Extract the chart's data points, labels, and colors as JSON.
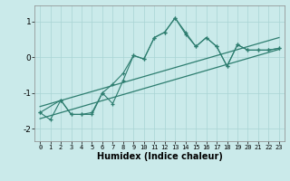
{
  "xlabel": "Humidex (Indice chaleur)",
  "bg_color": "#caeaea",
  "line_color": "#2d7d6f",
  "xlim": [
    -0.5,
    23.5
  ],
  "ylim": [
    -2.35,
    1.45
  ],
  "yticks": [
    -2,
    -1,
    0,
    1
  ],
  "xticks": [
    0,
    1,
    2,
    3,
    4,
    5,
    6,
    7,
    8,
    9,
    10,
    11,
    12,
    13,
    14,
    15,
    16,
    17,
    18,
    19,
    20,
    21,
    22,
    23
  ],
  "series1_x": [
    0,
    1,
    2,
    3,
    4,
    5,
    6,
    7,
    8,
    9,
    10,
    11,
    12,
    13,
    14,
    15,
    16,
    17,
    18,
    19,
    20,
    21,
    22,
    23
  ],
  "series1_y": [
    -1.55,
    -1.75,
    -1.2,
    -1.6,
    -1.6,
    -1.6,
    -1.0,
    -1.3,
    -0.65,
    0.05,
    -0.05,
    0.55,
    0.7,
    1.1,
    0.7,
    0.3,
    0.55,
    0.3,
    -0.25,
    0.35,
    0.2,
    0.2,
    0.2,
    0.25
  ],
  "series2_x": [
    0,
    2,
    3,
    4,
    5,
    6,
    7,
    8,
    9,
    10,
    11,
    12,
    13,
    14,
    15,
    16,
    17,
    18,
    19,
    20,
    21,
    22,
    23
  ],
  "series2_y": [
    -1.55,
    -1.2,
    -1.6,
    -1.6,
    -1.55,
    -1.0,
    -0.75,
    -0.45,
    0.05,
    -0.05,
    0.55,
    0.7,
    1.1,
    0.65,
    0.3,
    0.55,
    0.3,
    -0.25,
    0.35,
    0.2,
    0.2,
    0.2,
    0.25
  ],
  "line1_x": [
    0,
    23
  ],
  "line1_y": [
    -1.72,
    0.22
  ],
  "line2_x": [
    0,
    23
  ],
  "line2_y": [
    -1.38,
    0.55
  ]
}
